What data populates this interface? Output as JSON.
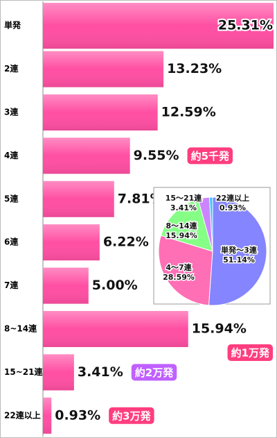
{
  "chart_data": [
    {
      "type": "bar",
      "categories": [
        "単発",
        "2連",
        "3連",
        "4連",
        "5連",
        "6連",
        "7連",
        "8~14連",
        "15~21連",
        "22連以上"
      ],
      "values": [
        25.31,
        13.23,
        12.59,
        9.55,
        7.81,
        6.22,
        5.0,
        15.94,
        3.41,
        0.93
      ],
      "value_labels": [
        "25.31%",
        "13.23%",
        "12.59%",
        "9.55%",
        "7.81%",
        "6.22%",
        "5.00%",
        "15.94%",
        "3.41%",
        "0.93%"
      ],
      "color": "#ff4fa3",
      "annotations": [
        null,
        null,
        null,
        "約5千発",
        null,
        null,
        null,
        "約1万発",
        "約2万発",
        "約3万発"
      ],
      "annotation_colors": [
        null,
        null,
        null,
        "#ff3d7f",
        null,
        null,
        null,
        "#ff3d7f",
        "#c060ff",
        "#ff3d7f"
      ]
    },
    {
      "type": "pie",
      "categories": [
        "単発～3連",
        "4～7連",
        "8～14連",
        "15～21連",
        "22連以上"
      ],
      "values": [
        51.14,
        28.59,
        15.94,
        3.41,
        0.93
      ],
      "value_labels": [
        "51.14%",
        "28.59%",
        "15.94%",
        "3.41%",
        "0.93%"
      ],
      "colors": [
        "#8585ff",
        "#ff6fb5",
        "#85ff85",
        "#cc85ff",
        "#33ccff"
      ]
    }
  ]
}
